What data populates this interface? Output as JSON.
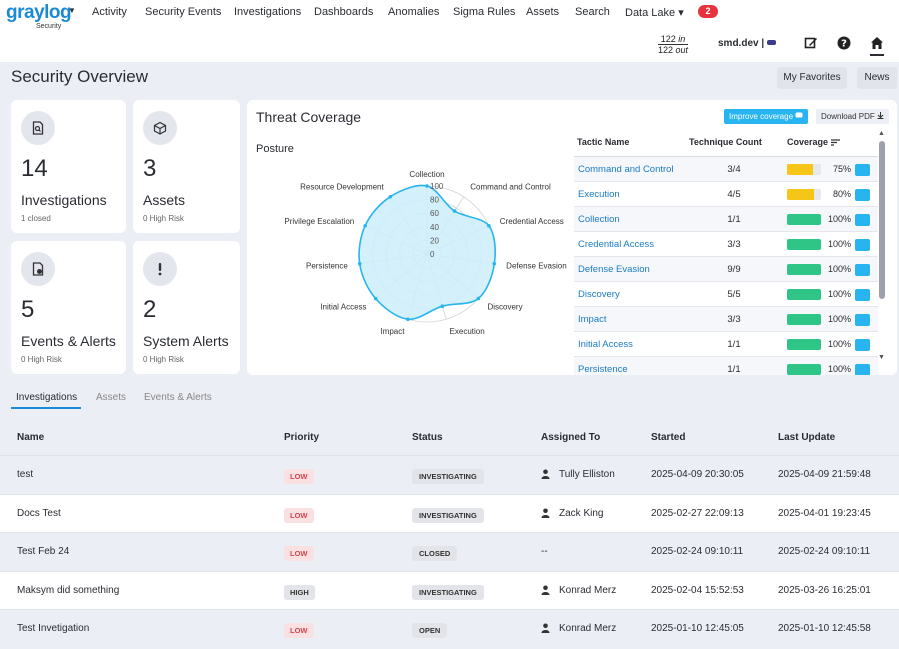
{
  "app": {
    "logo": "graylog",
    "logo_sub": "Security"
  },
  "nav": {
    "items": [
      "Activity",
      "Security Events",
      "Investigations",
      "Dashboards",
      "Anomalies",
      "Sigma Rules",
      "Assets",
      "Search",
      "Data Lake ▾"
    ],
    "badge": "2",
    "throughput_in": "122",
    "throughput_in_unit": "in",
    "throughput_out": "122",
    "throughput_out_unit": "out",
    "user": "smd.dev |"
  },
  "header": {
    "title": "Security Overview",
    "favorites": "My Favorites",
    "news": "News"
  },
  "cards": [
    {
      "value": "14",
      "label": "Investigations",
      "sub": "1 closed"
    },
    {
      "value": "3",
      "label": "Assets",
      "sub": "0 High Risk"
    },
    {
      "value": "5",
      "label": "Events & Alerts",
      "sub": "0 High Risk"
    },
    {
      "value": "2",
      "label": "System Alerts",
      "sub": "0 High Risk"
    }
  ],
  "threat": {
    "title": "Threat Coverage",
    "improve": "Improve coverage",
    "download": "Download PDF",
    "posture": "Posture",
    "headers": {
      "name": "Tactic Name",
      "count": "Technique Count",
      "coverage": "Coverage"
    },
    "rows": [
      {
        "name": "Command and Control",
        "count": "3/4",
        "pct": "75%",
        "value": 75,
        "color": "#f5c518"
      },
      {
        "name": "Execution",
        "count": "4/5",
        "pct": "80%",
        "value": 80,
        "color": "#f5c518"
      },
      {
        "name": "Collection",
        "count": "1/1",
        "pct": "100%",
        "value": 100,
        "color": "#2fc587"
      },
      {
        "name": "Credential Access",
        "count": "3/3",
        "pct": "100%",
        "value": 100,
        "color": "#2fc587"
      },
      {
        "name": "Defense Evasion",
        "count": "9/9",
        "pct": "100%",
        "value": 100,
        "color": "#2fc587"
      },
      {
        "name": "Discovery",
        "count": "5/5",
        "pct": "100%",
        "value": 100,
        "color": "#2fc587"
      },
      {
        "name": "Impact",
        "count": "3/3",
        "pct": "100%",
        "value": 100,
        "color": "#2fc587"
      },
      {
        "name": "Initial Access",
        "count": "1/1",
        "pct": "100%",
        "value": 100,
        "color": "#2fc587"
      },
      {
        "name": "Persistence",
        "count": "1/1",
        "pct": "100%",
        "value": 100,
        "color": "#2fc587"
      }
    ]
  },
  "chart_data": {
    "type": "radar",
    "title": "Posture",
    "axes": [
      "Collection",
      "Command and Control",
      "Credential Access",
      "Defense Evasion",
      "Discovery",
      "Execution",
      "Impact",
      "Initial Access",
      "Persistence",
      "Privilege Escalation",
      "Resource Development"
    ],
    "values": [
      100,
      75,
      100,
      100,
      100,
      80,
      100,
      100,
      100,
      100,
      100
    ],
    "ticks": [
      "100",
      "80",
      "60",
      "40",
      "20",
      "0"
    ],
    "range": [
      0,
      100
    ],
    "fill": "#cdeefa",
    "stroke": "#27b4ef"
  },
  "tabs": [
    "Investigations",
    "Assets",
    "Events & Alerts"
  ],
  "investigations": {
    "headers": [
      "Name",
      "Priority",
      "Status",
      "Assigned To",
      "Started",
      "Last Update"
    ],
    "rows": [
      {
        "name": "test",
        "priority": "LOW",
        "status": "INVESTIGATING",
        "assignee": "Tully Elliston",
        "started": "2025-04-09 20:30:05",
        "updated": "2025-04-09 21:59:48"
      },
      {
        "name": "Docs Test",
        "priority": "LOW",
        "status": "INVESTIGATING",
        "assignee": "Zack King",
        "started": "2025-02-27 22:09:13",
        "updated": "2025-04-01 19:23:45"
      },
      {
        "name": "Test Feb 24",
        "priority": "LOW",
        "status": "CLOSED",
        "assignee": "--",
        "started": "2025-02-24 09:10:11",
        "updated": "2025-02-24 09:10:11"
      },
      {
        "name": "Maksym did something",
        "priority": "HIGH",
        "status": "INVESTIGATING",
        "assignee": "Konrad Merz",
        "started": "2025-02-04 15:52:53",
        "updated": "2025-03-26 16:25:01"
      },
      {
        "name": "Test Invetigation",
        "priority": "LOW",
        "status": "OPEN",
        "assignee": "Konrad Merz",
        "started": "2025-01-10 12:45:05",
        "updated": "2025-01-10 12:45:58"
      }
    ]
  }
}
